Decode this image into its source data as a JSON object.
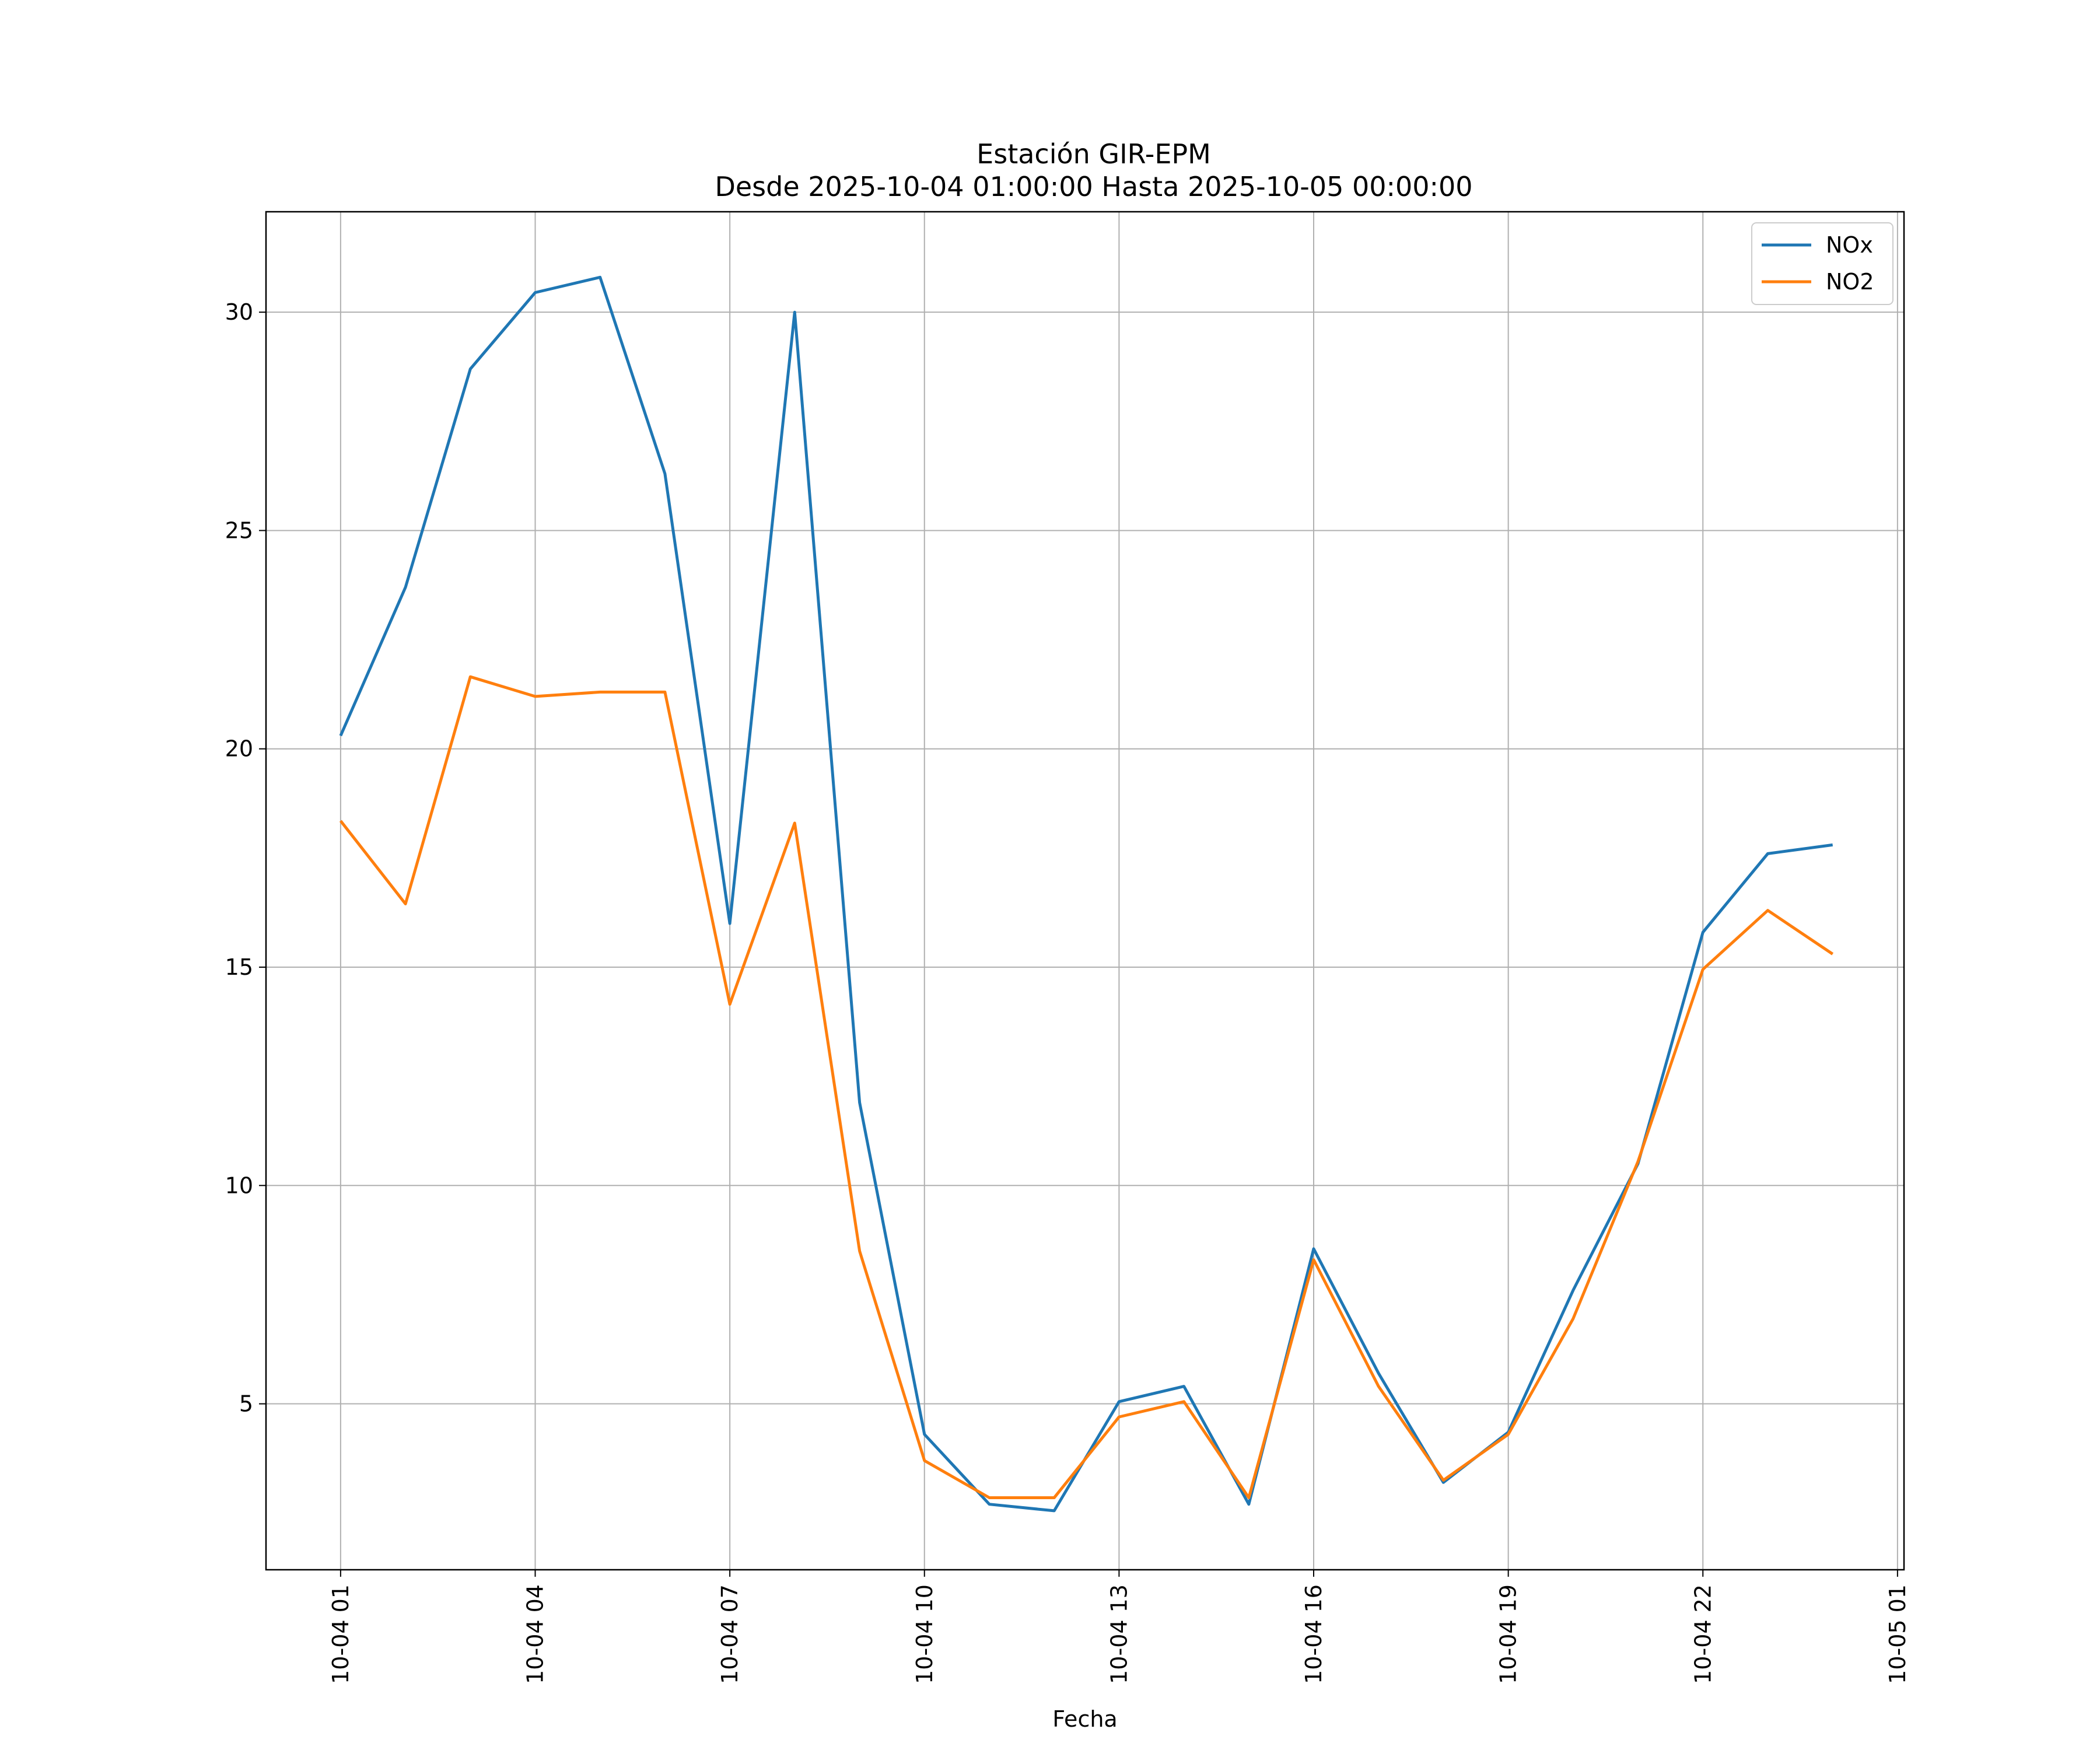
{
  "chart_data": {
    "type": "line",
    "title": "Estación GIR-EPM",
    "subtitle": "Desde 2025-10-04 01:00:00 Hasta 2025-10-05 00:00:00",
    "xlabel": "Fecha",
    "ylabel": "",
    "grid": true,
    "legend_position": "top-right",
    "x": [
      "10-04 01",
      "10-04 02",
      "10-04 03",
      "10-04 04",
      "10-04 05",
      "10-04 06",
      "10-04 07",
      "10-04 08",
      "10-04 09",
      "10-04 10",
      "10-04 11",
      "10-04 12",
      "10-04 13",
      "10-04 14",
      "10-04 15",
      "10-04 16",
      "10-04 17",
      "10-04 18",
      "10-04 19",
      "10-04 20",
      "10-04 21",
      "10-04 22",
      "10-04 23",
      "10-05 00"
    ],
    "x_hours": [
      1,
      2,
      3,
      4,
      5,
      6,
      7,
      8,
      9,
      10,
      11,
      12,
      13,
      14,
      15,
      16,
      17,
      18,
      19,
      20,
      21,
      22,
      23,
      24
    ],
    "xlim_hours": [
      -0.15,
      25.1
    ],
    "x_tick_hours": [
      1,
      4,
      7,
      10,
      13,
      16,
      19,
      22,
      25
    ],
    "x_tick_labels": [
      "10-04 01",
      "10-04 04",
      "10-04 07",
      "10-04 10",
      "10-04 13",
      "10-04 16",
      "10-04 19",
      "10-04 22",
      "10-05 01"
    ],
    "ylim": [
      1.2,
      32.3
    ],
    "y_ticks": [
      5,
      10,
      15,
      20,
      25,
      30
    ],
    "y_tick_labels": [
      "5",
      "10",
      "15",
      "20",
      "25",
      "30"
    ],
    "series": [
      {
        "name": "NOx",
        "color": "#1f77b4",
        "values": [
          20.3,
          23.7,
          28.7,
          30.45,
          30.8,
          26.3,
          16.0,
          30.0,
          11.9,
          4.3,
          2.7,
          2.55,
          5.05,
          5.4,
          2.7,
          8.55,
          5.7,
          3.2,
          4.35,
          7.6,
          10.5,
          15.8,
          17.6,
          17.8
        ]
      },
      {
        "name": "NO2",
        "color": "#ff7f0e",
        "values": [
          18.35,
          16.45,
          21.65,
          21.2,
          21.3,
          21.3,
          14.15,
          18.3,
          8.5,
          3.7,
          2.85,
          2.85,
          4.7,
          5.05,
          2.85,
          8.3,
          5.4,
          3.25,
          4.3,
          6.95,
          10.55,
          14.95,
          16.3,
          15.3
        ]
      }
    ]
  }
}
